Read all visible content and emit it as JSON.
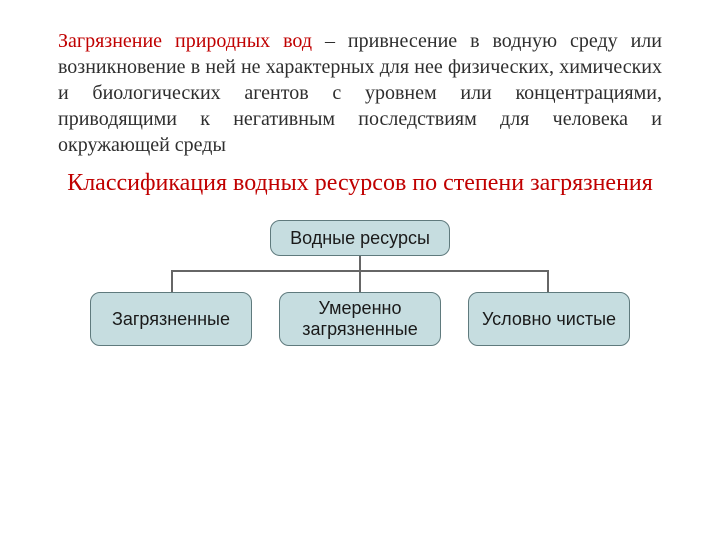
{
  "definition": {
    "term": "Загрязнение природных вод",
    "rest": " – привнесение в водную среду или возникновение в ней не характерных для нее физических, химических и биологических агентов с уровнем или концентрациями, приводящими к негативным последствиям для человека и окружающей среды",
    "term_color": "#c00000",
    "text_color": "#2e2e2e",
    "fontsize": 20
  },
  "heading": {
    "text": "Классификация водных ресурсов по степени загрязнения",
    "color": "#c00000",
    "fontsize": 24
  },
  "diagram": {
    "type": "tree",
    "node_fill": "#c6dde0",
    "node_border": "#5f7a7d",
    "node_text_color": "#1a1a1a",
    "connector_color": "#666666",
    "border_radius": 10,
    "node_font_family": "Arial",
    "root": {
      "label": "Водные ресурсы",
      "fontsize": 18
    },
    "children": [
      {
        "label": "Загрязненные",
        "fontsize": 18
      },
      {
        "label": "Умеренно загрязненные",
        "fontsize": 18
      },
      {
        "label": "Условно чистые",
        "fontsize": 18
      }
    ]
  },
  "background_color": "#ffffff"
}
